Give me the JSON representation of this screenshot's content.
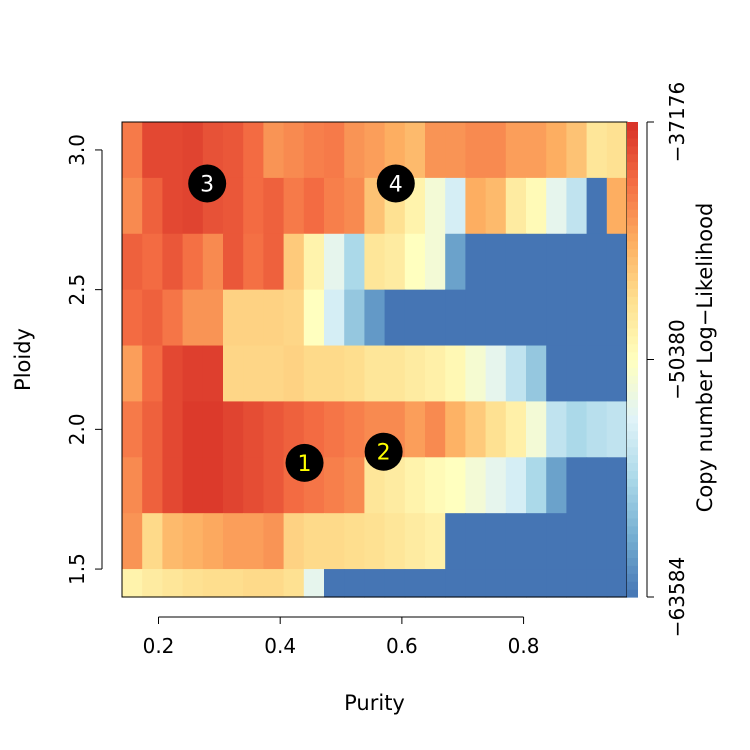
{
  "chart_data": {
    "type": "heatmap",
    "title": "",
    "xlabel": "Purity",
    "ylabel": "Ploidy",
    "x_ticks": [
      0.2,
      0.4,
      0.6,
      0.8
    ],
    "x_tick_labels": [
      "0.2",
      "0.4",
      "0.6",
      "0.8"
    ],
    "y_ticks": [
      1.5,
      2.0,
      2.5,
      3.0
    ],
    "y_tick_labels": [
      "1.5",
      "2.0",
      "2.5",
      "3.0"
    ],
    "xlim": [
      0.14,
      0.97
    ],
    "ylim": [
      1.4,
      3.1
    ],
    "colorbar": {
      "label": "Copy number Log−Likelihood",
      "tick_values": [
        -37176,
        -50380,
        -63584
      ],
      "tick_labels": [
        "−37176",
        "−50380",
        "−63584"
      ],
      "range": [
        -63584,
        -37176
      ],
      "palette": [
        "#4575b4",
        "#74add1",
        "#abd9e9",
        "#e0f3f8",
        "#ffffbf",
        "#fee090",
        "#fdae61",
        "#f46d43",
        "#d73027"
      ]
    },
    "grid": {
      "x_start": 0.14,
      "x_end": 0.97,
      "columns": 25,
      "y_bands": [
        3.1,
        2.9,
        2.7,
        2.5,
        2.3,
        2.1,
        1.9,
        1.7,
        1.5,
        1.4
      ],
      "rows": [
        [
          0.85,
          0.95,
          0.95,
          0.96,
          0.93,
          0.92,
          0.88,
          0.8,
          0.82,
          0.84,
          0.85,
          0.8,
          0.78,
          0.75,
          0.72,
          0.8,
          0.8,
          0.82,
          0.82,
          0.78,
          0.78,
          0.75,
          0.7,
          0.6,
          0.62
        ],
        [
          0.82,
          0.9,
          0.95,
          0.96,
          0.93,
          0.92,
          0.88,
          0.9,
          0.85,
          0.88,
          0.84,
          0.82,
          0.7,
          0.62,
          0.55,
          0.45,
          0.35,
          0.75,
          0.72,
          0.58,
          0.52,
          0.4,
          0.3,
          0.0,
          0.75
        ],
        [
          0.9,
          0.88,
          0.92,
          0.87,
          0.82,
          0.92,
          0.87,
          0.9,
          0.68,
          0.55,
          0.4,
          0.25,
          0.6,
          0.58,
          0.5,
          0.45,
          0.1,
          0.0,
          0.0,
          0.0,
          0.0,
          0.0,
          0.0,
          0.0,
          0.0
        ],
        [
          0.88,
          0.9,
          0.86,
          0.8,
          0.8,
          0.66,
          0.66,
          0.66,
          0.65,
          0.5,
          0.35,
          0.2,
          0.08,
          0.0,
          0.0,
          0.0,
          0.0,
          0.0,
          0.0,
          0.0,
          0.0,
          0.0,
          0.0,
          0.0,
          0.0
        ],
        [
          0.78,
          0.88,
          0.95,
          0.97,
          0.97,
          0.65,
          0.65,
          0.65,
          0.66,
          0.64,
          0.64,
          0.63,
          0.6,
          0.6,
          0.58,
          0.56,
          0.53,
          0.46,
          0.4,
          0.3,
          0.2,
          0.0,
          0.0,
          0.0,
          0.0
        ],
        [
          0.85,
          0.9,
          0.95,
          0.98,
          0.98,
          0.96,
          0.94,
          0.92,
          0.9,
          0.88,
          0.86,
          0.84,
          0.82,
          0.82,
          0.78,
          0.82,
          0.74,
          0.68,
          0.62,
          0.56,
          0.45,
          0.3,
          0.25,
          0.28,
          0.3
        ],
        [
          0.82,
          0.9,
          0.95,
          0.98,
          0.98,
          0.96,
          0.94,
          0.92,
          0.88,
          0.86,
          0.84,
          0.82,
          0.6,
          0.58,
          0.55,
          0.52,
          0.5,
          0.45,
          0.4,
          0.35,
          0.25,
          0.1,
          0.0,
          0.0,
          0.0
        ],
        [
          0.8,
          0.64,
          0.72,
          0.74,
          0.76,
          0.78,
          0.78,
          0.8,
          0.66,
          0.64,
          0.64,
          0.63,
          0.62,
          0.6,
          0.58,
          0.56,
          0.0,
          0.0,
          0.0,
          0.0,
          0.0,
          0.0,
          0.0,
          0.0,
          0.0
        ],
        [
          0.55,
          0.58,
          0.6,
          0.62,
          0.63,
          0.63,
          0.64,
          0.64,
          0.62,
          0.4,
          0.0,
          0.0,
          0.0,
          0.0,
          0.0,
          0.0,
          0.0,
          0.0,
          0.0,
          0.0,
          0.0,
          0.0,
          0.0,
          0.0,
          0.0
        ]
      ]
    },
    "annotations": [
      {
        "label": "1",
        "x": 0.44,
        "y": 1.88,
        "text_color": "#ffff00"
      },
      {
        "label": "2",
        "x": 0.57,
        "y": 1.92,
        "text_color": "#ffff00"
      },
      {
        "label": "3",
        "x": 0.28,
        "y": 2.88,
        "text_color": "#ffffff"
      },
      {
        "label": "4",
        "x": 0.59,
        "y": 2.88,
        "text_color": "#ffffff"
      }
    ],
    "marker_color": "#000000"
  }
}
